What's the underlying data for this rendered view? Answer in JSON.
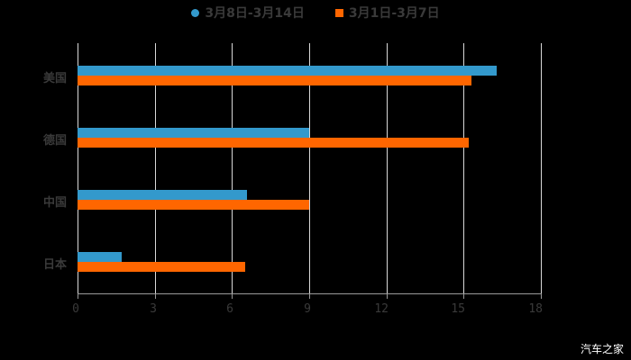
{
  "chart_data": {
    "type": "bar",
    "orientation": "horizontal",
    "title": "",
    "xlabel": "",
    "ylabel": "",
    "categories": [
      "美国",
      "德国",
      "中国",
      "日本"
    ],
    "series": [
      {
        "name": "3月8日-3月14日",
        "color": "#3399cc",
        "values": [
          16.3,
          9.0,
          6.6,
          1.7
        ]
      },
      {
        "name": "3月1日-3月7日",
        "color": "#ff6600",
        "values": [
          15.3,
          15.2,
          9.0,
          6.5
        ]
      }
    ],
    "xlim": [
      0,
      18
    ],
    "x_ticks": [
      "0",
      "3",
      "6",
      "9",
      "12",
      "15",
      "18"
    ],
    "grid": true,
    "legend_position": "top"
  },
  "legend": [
    {
      "label": "3月8日-3月14日",
      "color": "#3399cc",
      "shape": "circle"
    },
    {
      "label": "3月1日-3月7日",
      "color": "#ff6600",
      "shape": "square"
    }
  ],
  "watermark": "汽车之家"
}
